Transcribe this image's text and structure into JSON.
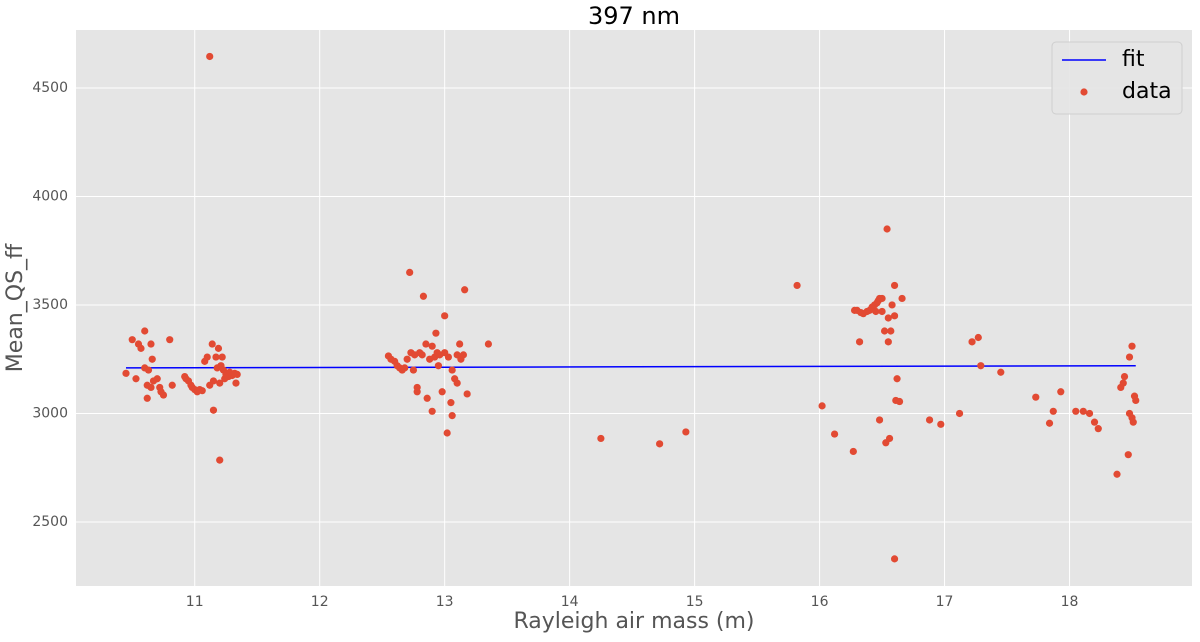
{
  "chart_data": {
    "type": "scatter",
    "title": "397 nm",
    "x_label": "Rayleigh air mass (m)",
    "y_label": "Mean_QS_ff",
    "xlim": [
      10.05,
      18.98
    ],
    "ylim": [
      2205,
      4767
    ],
    "xticks": [
      11,
      12,
      13,
      14,
      15,
      16,
      17,
      18
    ],
    "yticks": [
      2500,
      3000,
      3500,
      4000,
      4500
    ],
    "grid": true,
    "legend": "upper right",
    "series": [
      {
        "name": "fit",
        "type": "line",
        "color": "#0000ff",
        "x": [
          10.45,
          18.53
        ],
        "values": [
          3210,
          3220
        ]
      },
      {
        "name": "data",
        "type": "scatter",
        "color": "#e24a33",
        "x": [
          10.45,
          10.5,
          10.53,
          10.55,
          10.57,
          10.6,
          10.6,
          10.62,
          10.62,
          10.63,
          10.65,
          10.65,
          10.66,
          10.67,
          10.7,
          10.72,
          10.73,
          10.75,
          10.8,
          10.82,
          10.92,
          10.93,
          10.95,
          10.97,
          10.98,
          11.0,
          11.02,
          11.04,
          11.06,
          11.08,
          11.1,
          11.12,
          11.12,
          11.14,
          11.15,
          11.15,
          11.17,
          11.18,
          11.19,
          11.2,
          11.2,
          11.21,
          11.22,
          11.23,
          11.24,
          11.25,
          11.27,
          11.28,
          11.3,
          11.32,
          11.33,
          11.34,
          12.55,
          12.57,
          12.6,
          12.62,
          12.64,
          12.66,
          12.68,
          12.7,
          12.72,
          12.73,
          12.75,
          12.76,
          12.78,
          12.78,
          12.8,
          12.82,
          12.83,
          12.85,
          12.86,
          12.88,
          12.9,
          12.9,
          12.92,
          12.93,
          12.94,
          12.95,
          12.96,
          12.98,
          13.0,
          13.0,
          13.02,
          13.03,
          13.05,
          13.06,
          13.06,
          13.08,
          13.1,
          13.1,
          13.12,
          13.13,
          13.15,
          13.16,
          13.18,
          13.35,
          14.25,
          14.72,
          14.93,
          15.82,
          16.02,
          16.12,
          16.27,
          16.28,
          16.3,
          16.32,
          16.33,
          16.35,
          16.38,
          16.4,
          16.42,
          16.44,
          16.45,
          16.46,
          16.47,
          16.48,
          16.48,
          16.5,
          16.5,
          16.52,
          16.53,
          16.54,
          16.55,
          16.55,
          16.56,
          16.57,
          16.58,
          16.6,
          16.6,
          16.6,
          16.61,
          16.62,
          16.64,
          16.66,
          16.88,
          16.97,
          17.12,
          17.22,
          17.27,
          17.29,
          17.45,
          17.73,
          17.84,
          17.87,
          17.93,
          18.05,
          18.11,
          18.16,
          18.2,
          18.23,
          18.38,
          18.41,
          18.43,
          18.44,
          18.47,
          18.48,
          18.48,
          18.5,
          18.5,
          18.51,
          18.52,
          18.53
        ],
        "values": [
          3185,
          3340,
          3160,
          3320,
          3300,
          3380,
          3210,
          3130,
          3070,
          3200,
          3320,
          3120,
          3250,
          3150,
          3160,
          3120,
          3100,
          3085,
          3340,
          3130,
          3170,
          3160,
          3150,
          3130,
          3120,
          3110,
          3100,
          3110,
          3105,
          3240,
          3260,
          4645,
          3130,
          3320,
          3150,
          3015,
          3260,
          3210,
          3300,
          2785,
          3140,
          3220,
          3260,
          3200,
          3160,
          3180,
          3170,
          3190,
          3175,
          3185,
          3140,
          3180,
          3265,
          3250,
          3240,
          3220,
          3210,
          3200,
          3210,
          3250,
          3650,
          3280,
          3200,
          3270,
          3120,
          3100,
          3280,
          3270,
          3540,
          3320,
          3070,
          3250,
          3310,
          3010,
          3260,
          3370,
          3280,
          3220,
          3270,
          3100,
          3450,
          3280,
          2910,
          3260,
          3050,
          3200,
          2990,
          3160,
          3140,
          3270,
          3320,
          3250,
          3270,
          3570,
          3090,
          3320,
          2885,
          2860,
          2915,
          3590,
          3035,
          2905,
          2825,
          3475,
          3475,
          3330,
          3465,
          3460,
          3470,
          3475,
          3490,
          3500,
          3470,
          3510,
          3520,
          2970,
          3530,
          3470,
          3530,
          3380,
          2865,
          3850,
          3440,
          3330,
          2885,
          3380,
          3500,
          3590,
          3450,
          2330,
          3060,
          3160,
          3055,
          3530,
          2970,
          2950,
          3000,
          3330,
          3350,
          3220,
          3190,
          3075,
          2955,
          3010,
          3100,
          3010,
          3010,
          3000,
          2960,
          2930,
          2720,
          3120,
          3140,
          3170,
          2810,
          3000,
          3260,
          3310,
          2980,
          2960,
          3080,
          3060
        ]
      }
    ]
  }
}
